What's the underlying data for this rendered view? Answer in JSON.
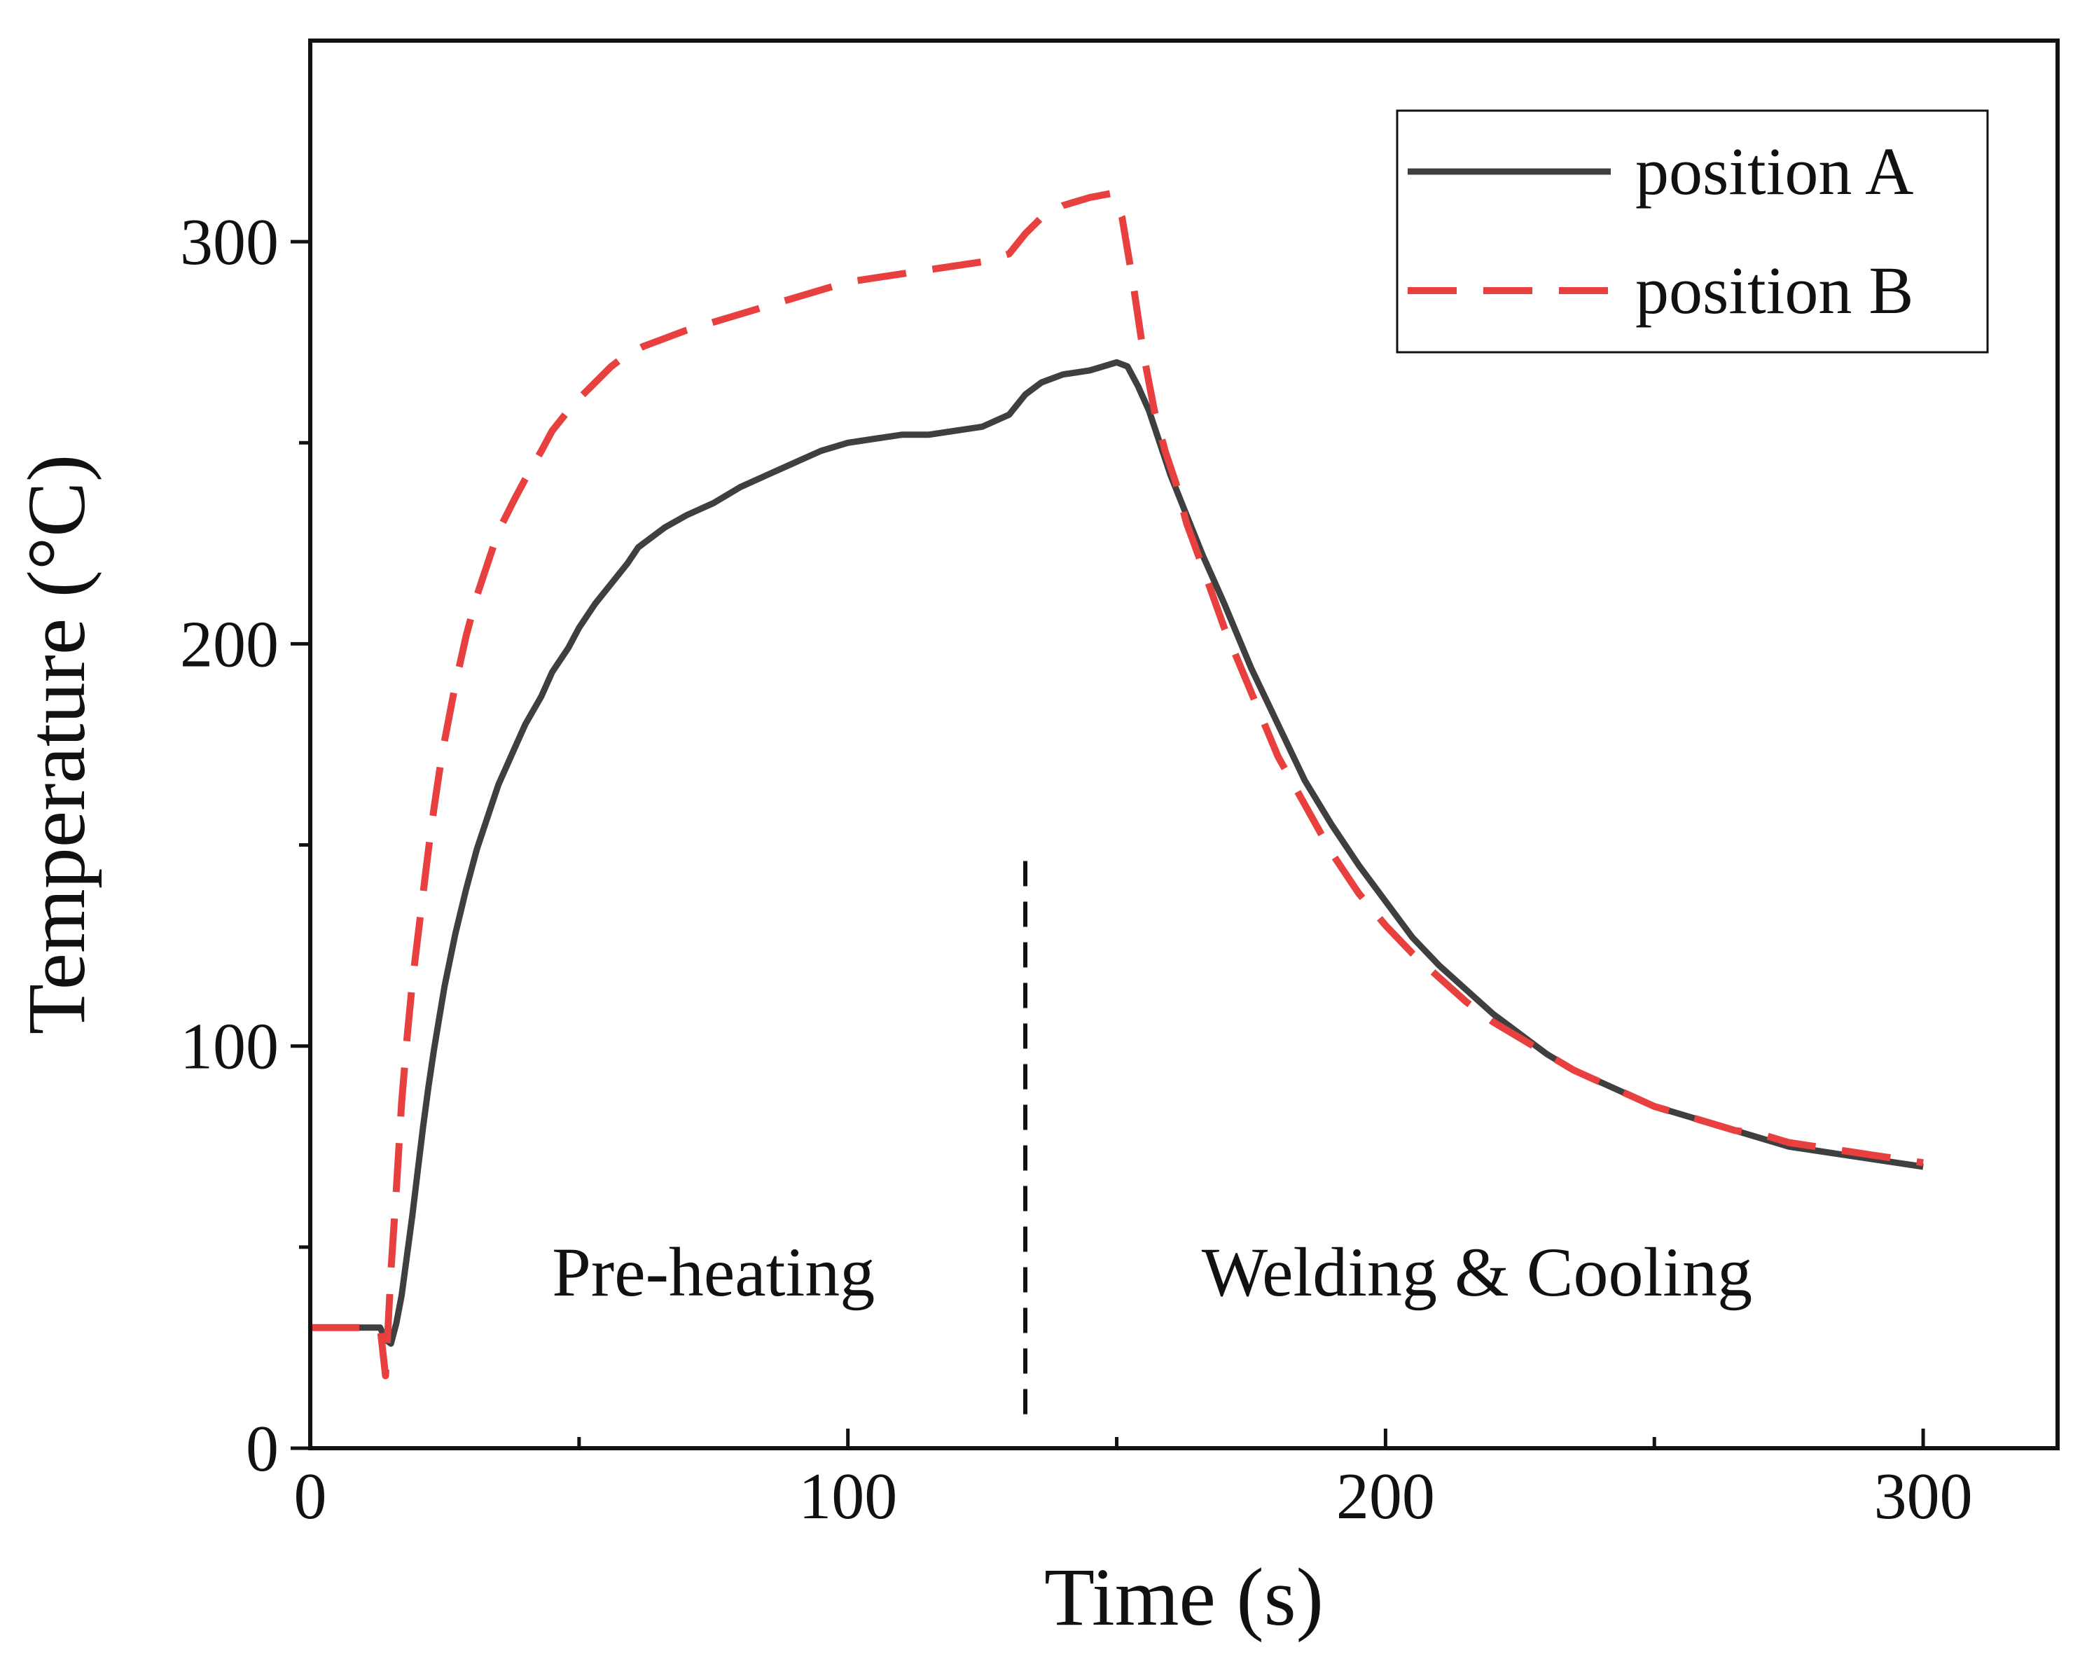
{
  "chart_data": {
    "type": "line",
    "title": "",
    "xlabel": "Time (s)",
    "ylabel": "Temperature (°C)",
    "xlim": [
      0,
      325
    ],
    "ylim": [
      0,
      350
    ],
    "x_ticks": [
      0,
      100,
      200,
      300
    ],
    "x_minor_ticks": [
      50,
      150,
      250
    ],
    "y_ticks": [
      0,
      100,
      200,
      300
    ],
    "y_minor_ticks": [
      50,
      150,
      250
    ],
    "grid": false,
    "legend_position": "top-right",
    "series": [
      {
        "name": "position A",
        "color": "#3f3f3f",
        "style": "solid",
        "points": [
          [
            0,
            30
          ],
          [
            5,
            30
          ],
          [
            10,
            30
          ],
          [
            13,
            30
          ],
          [
            14,
            27
          ],
          [
            15,
            26
          ],
          [
            16,
            31
          ],
          [
            17,
            38
          ],
          [
            18,
            48
          ],
          [
            19,
            58
          ],
          [
            20,
            69
          ],
          [
            21,
            80
          ],
          [
            22,
            90
          ],
          [
            23,
            99
          ],
          [
            24,
            107
          ],
          [
            25,
            115
          ],
          [
            27,
            128
          ],
          [
            29,
            139
          ],
          [
            31,
            149
          ],
          [
            33,
            157
          ],
          [
            35,
            165
          ],
          [
            38,
            174
          ],
          [
            40,
            180
          ],
          [
            43,
            187
          ],
          [
            45,
            193
          ],
          [
            48,
            199
          ],
          [
            50,
            204
          ],
          [
            53,
            210
          ],
          [
            56,
            215
          ],
          [
            59,
            220
          ],
          [
            61,
            224
          ],
          [
            63,
            226
          ],
          [
            66,
            229
          ],
          [
            70,
            232
          ],
          [
            75,
            235
          ],
          [
            80,
            239
          ],
          [
            85,
            242
          ],
          [
            90,
            245
          ],
          [
            95,
            248
          ],
          [
            100,
            250
          ],
          [
            105,
            251
          ],
          [
            110,
            252
          ],
          [
            115,
            252
          ],
          [
            120,
            253
          ],
          [
            125,
            254
          ],
          [
            130,
            257
          ],
          [
            133,
            262
          ],
          [
            136,
            265
          ],
          [
            140,
            267
          ],
          [
            145,
            268
          ],
          [
            150,
            270
          ],
          [
            152,
            269
          ],
          [
            154,
            264
          ],
          [
            156,
            258
          ],
          [
            158,
            250
          ],
          [
            160,
            242
          ],
          [
            163,
            232
          ],
          [
            166,
            222
          ],
          [
            170,
            210
          ],
          [
            175,
            194
          ],
          [
            180,
            180
          ],
          [
            185,
            166
          ],
          [
            190,
            155
          ],
          [
            195,
            145
          ],
          [
            200,
            136
          ],
          [
            205,
            127
          ],
          [
            210,
            120
          ],
          [
            215,
            114
          ],
          [
            220,
            108
          ],
          [
            225,
            103
          ],
          [
            230,
            98
          ],
          [
            235,
            94
          ],
          [
            240,
            91
          ],
          [
            245,
            88
          ],
          [
            250,
            85
          ],
          [
            255,
            83
          ],
          [
            260,
            81
          ],
          [
            265,
            79
          ],
          [
            270,
            77
          ],
          [
            275,
            75
          ],
          [
            280,
            74
          ],
          [
            285,
            73
          ],
          [
            290,
            72
          ],
          [
            295,
            71
          ],
          [
            300,
            70
          ]
        ]
      },
      {
        "name": "position B",
        "color": "#e8403f",
        "style": "dashed",
        "points": [
          [
            0,
            30
          ],
          [
            5,
            30
          ],
          [
            10,
            30
          ],
          [
            13,
            30
          ],
          [
            14,
            18
          ],
          [
            15,
            44
          ],
          [
            16,
            64
          ],
          [
            17,
            86
          ],
          [
            18,
            102
          ],
          [
            19,
            116
          ],
          [
            20,
            127
          ],
          [
            21,
            138
          ],
          [
            22,
            149
          ],
          [
            23,
            159
          ],
          [
            24,
            168
          ],
          [
            25,
            176
          ],
          [
            27,
            190
          ],
          [
            29,
            202
          ],
          [
            31,
            212
          ],
          [
            33,
            220
          ],
          [
            35,
            228
          ],
          [
            38,
            236
          ],
          [
            40,
            241
          ],
          [
            43,
            248
          ],
          [
            45,
            253
          ],
          [
            48,
            258
          ],
          [
            50,
            261
          ],
          [
            53,
            265
          ],
          [
            56,
            269
          ],
          [
            59,
            272
          ],
          [
            62,
            274
          ],
          [
            66,
            276
          ],
          [
            70,
            278
          ],
          [
            75,
            280
          ],
          [
            80,
            282
          ],
          [
            85,
            284
          ],
          [
            90,
            286
          ],
          [
            95,
            288
          ],
          [
            100,
            290
          ],
          [
            105,
            291
          ],
          [
            110,
            292
          ],
          [
            115,
            293
          ],
          [
            120,
            294
          ],
          [
            125,
            295
          ],
          [
            130,
            297
          ],
          [
            133,
            302
          ],
          [
            136,
            306
          ],
          [
            140,
            309
          ],
          [
            145,
            311
          ],
          [
            149,
            312
          ],
          [
            151,
            306
          ],
          [
            153,
            290
          ],
          [
            155,
            272
          ],
          [
            157,
            258
          ],
          [
            159,
            248
          ],
          [
            161,
            240
          ],
          [
            163,
            230
          ],
          [
            166,
            219
          ],
          [
            170,
            204
          ],
          [
            175,
            188
          ],
          [
            180,
            172
          ],
          [
            185,
            160
          ],
          [
            190,
            148
          ],
          [
            195,
            138
          ],
          [
            200,
            130
          ],
          [
            205,
            123
          ],
          [
            210,
            117
          ],
          [
            215,
            111
          ],
          [
            220,
            106
          ],
          [
            225,
            102
          ],
          [
            230,
            98
          ],
          [
            235,
            94
          ],
          [
            240,
            91
          ],
          [
            245,
            88
          ],
          [
            250,
            85
          ],
          [
            255,
            83
          ],
          [
            260,
            81
          ],
          [
            265,
            79
          ],
          [
            270,
            78
          ],
          [
            275,
            76
          ],
          [
            280,
            75
          ],
          [
            285,
            74
          ],
          [
            290,
            73
          ],
          [
            295,
            72
          ],
          [
            300,
            71
          ]
        ]
      }
    ],
    "divider": {
      "x": 133,
      "style": "dashed",
      "color": "#111111"
    },
    "annotations": [
      {
        "text": "Pre-heating",
        "x": 75,
        "y": 38
      },
      {
        "text": "Welding & Cooling",
        "x": 217,
        "y": 38
      }
    ]
  }
}
